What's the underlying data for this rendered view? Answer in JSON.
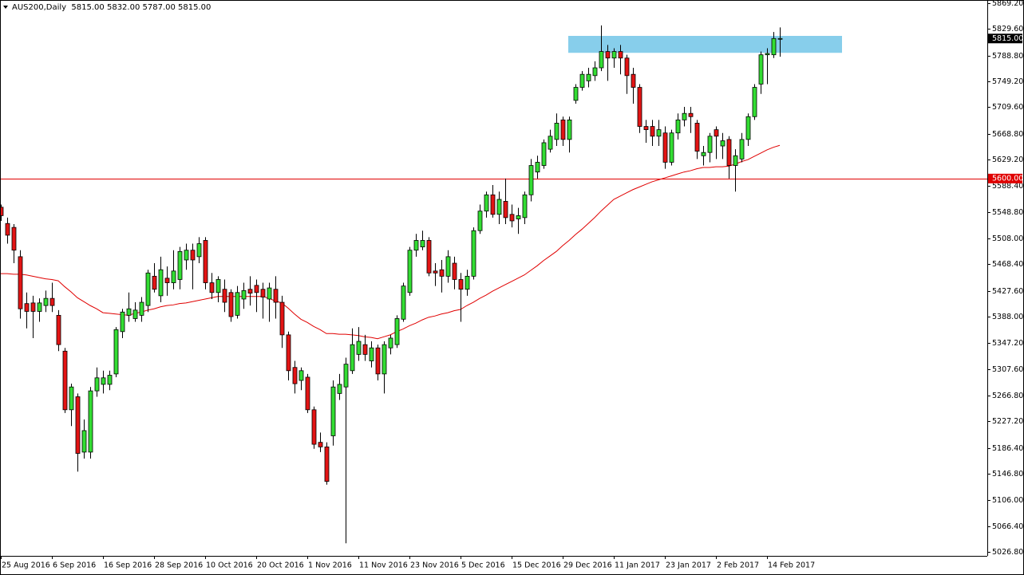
{
  "chart_data": {
    "type": "candlestick",
    "title": "AUS200,Daily  5815.00 5832.00 5787.00 5815.00",
    "categories": [
      "25 Aug 2016",
      null,
      null,
      null,
      null,
      null,
      null,
      null,
      "6 Sep 2016",
      null,
      null,
      null,
      null,
      null,
      null,
      null,
      "16 Sep 2016",
      null,
      null,
      null,
      null,
      null,
      null,
      null,
      "28 Sep 2016",
      null,
      null,
      null,
      null,
      null,
      null,
      null,
      "10 Oct 2016",
      null,
      null,
      null,
      null,
      null,
      null,
      null,
      "20 Oct 2016",
      null,
      null,
      null,
      null,
      null,
      null,
      null,
      "1 Nov 2016",
      null,
      null,
      null,
      null,
      null,
      null,
      null,
      "11 Nov 2016",
      null,
      null,
      null,
      null,
      null,
      null,
      null,
      "23 Nov 2016",
      null,
      null,
      null,
      null,
      null,
      null,
      null,
      "5 Dec 2016",
      null,
      null,
      null,
      null,
      null,
      null,
      null,
      "15 Dec 2016",
      null,
      null,
      null,
      null,
      null,
      null,
      null,
      "29 Dec 2016",
      null,
      null,
      null,
      null,
      null,
      null,
      null,
      "11 Jan 2017",
      null,
      null,
      null,
      null,
      null,
      null,
      null,
      "23 Jan 2017",
      null,
      null,
      null,
      null,
      null,
      null,
      null,
      "2 Feb 2017",
      null,
      null,
      null,
      null,
      null,
      null,
      null,
      "14 Feb 2017",
      null,
      null
    ],
    "open": [
      5556,
      5531,
      5525,
      5480,
      5408,
      5409,
      5396,
      5405,
      5416,
      5390,
      5335,
      5245,
      5265,
      5180,
      5180,
      5274,
      5284,
      5284,
      5300,
      5365,
      5390,
      5385,
      5390,
      5405,
      5450,
      5420,
      5447,
      5440,
      5445,
      5475,
      5490,
      5480,
      5505,
      5440,
      5425,
      5430,
      5425,
      5390,
      5415,
      5430,
      5436,
      5430,
      5415,
      5430,
      5410,
      5360,
      5310,
      5290,
      5295,
      5245,
      5195,
      5188,
      5205,
      5270,
      5280,
      5305,
      5330,
      5345,
      5320,
      5340,
      5300,
      5340,
      5345,
      5384,
      5425,
      5490,
      5495,
      5505,
      5458,
      5460,
      5450,
      5470,
      5445,
      5430,
      5450,
      5520,
      5550,
      5575,
      5545,
      5565,
      5545,
      5538,
      5540,
      5575,
      5610,
      5620,
      5645,
      5660,
      5690,
      5660,
      5720,
      5740,
      5750,
      5758,
      5770,
      5795,
      5785,
      5795,
      5785,
      5760,
      5740,
      5680,
      5680,
      5665,
      5670,
      5625,
      5670,
      5690,
      5700,
      5685,
      5635,
      5640,
      5675,
      5650,
      5660,
      5620,
      5630,
      5660,
      5695,
      5745,
      5790,
      5790,
      5815
    ],
    "high": [
      5560,
      5540,
      5530,
      5490,
      5425,
      5420,
      5416,
      5428,
      5440,
      5398,
      5340,
      5285,
      5270,
      5230,
      5280,
      5310,
      5305,
      5305,
      5372,
      5400,
      5425,
      5410,
      5418,
      5460,
      5470,
      5480,
      5465,
      5490,
      5495,
      5500,
      5500,
      5510,
      5510,
      5455,
      5450,
      5445,
      5430,
      5435,
      5440,
      5450,
      5445,
      5440,
      5440,
      5450,
      5420,
      5365,
      5320,
      5310,
      5300,
      5250,
      5210,
      5195,
      5290,
      5300,
      5325,
      5370,
      5372,
      5360,
      5350,
      5345,
      5350,
      5360,
      5390,
      5440,
      5495,
      5515,
      5520,
      5510,
      5470,
      5475,
      5490,
      5480,
      5455,
      5460,
      5525,
      5560,
      5580,
      5590,
      5580,
      5600,
      5560,
      5555,
      5580,
      5630,
      5635,
      5660,
      5675,
      5700,
      5695,
      5695,
      5745,
      5765,
      5770,
      5780,
      5835,
      5805,
      5800,
      5805,
      5790,
      5770,
      5745,
      5690,
      5690,
      5690,
      5680,
      5675,
      5700,
      5710,
      5710,
      5690,
      5650,
      5670,
      5680,
      5670,
      5665,
      5645,
      5670,
      5700,
      5745,
      5795,
      5800,
      5825,
      5832
    ],
    "low": [
      5535,
      5500,
      5470,
      5385,
      5370,
      5355,
      5380,
      5395,
      5395,
      5335,
      5240,
      5220,
      5150,
      5170,
      5170,
      5265,
      5270,
      5275,
      5295,
      5355,
      5380,
      5380,
      5380,
      5395,
      5425,
      5410,
      5420,
      5430,
      5430,
      5460,
      5430,
      5470,
      5430,
      5415,
      5410,
      5395,
      5380,
      5385,
      5400,
      5405,
      5395,
      5385,
      5380,
      5385,
      5340,
      5290,
      5270,
      5275,
      5240,
      5185,
      5180,
      5130,
      5190,
      5260,
      5040,
      5300,
      5320,
      5320,
      5310,
      5290,
      5270,
      5330,
      5340,
      5380,
      5420,
      5480,
      5490,
      5450,
      5435,
      5425,
      5440,
      5430,
      5380,
      5420,
      5445,
      5515,
      5540,
      5540,
      5530,
      5530,
      5525,
      5515,
      5530,
      5565,
      5600,
      5615,
      5640,
      5650,
      5650,
      5640,
      5715,
      5735,
      5740,
      5750,
      5765,
      5750,
      5770,
      5760,
      5730,
      5715,
      5670,
      5655,
      5650,
      5650,
      5615,
      5620,
      5660,
      5680,
      5670,
      5630,
      5620,
      5625,
      5630,
      5630,
      5600,
      5580,
      5625,
      5650,
      5690,
      5730,
      5745,
      5785,
      5787
    ],
    "close": [
      5543,
      5513,
      5490,
      5400,
      5396,
      5396,
      5409,
      5416,
      5405,
      5345,
      5245,
      5280,
      5178,
      5213,
      5274,
      5294,
      5294,
      5298,
      5368,
      5395,
      5400,
      5398,
      5410,
      5455,
      5430,
      5460,
      5440,
      5458,
      5488,
      5490,
      5475,
      5500,
      5440,
      5425,
      5445,
      5410,
      5388,
      5425,
      5428,
      5424,
      5425,
      5418,
      5432,
      5410,
      5360,
      5305,
      5285,
      5305,
      5245,
      5192,
      5188,
      5135,
      5280,
      5284,
      5315,
      5345,
      5350,
      5330,
      5340,
      5300,
      5345,
      5355,
      5385,
      5435,
      5490,
      5505,
      5505,
      5455,
      5455,
      5450,
      5480,
      5445,
      5430,
      5450,
      5520,
      5550,
      5575,
      5545,
      5568,
      5540,
      5535,
      5543,
      5575,
      5620,
      5625,
      5655,
      5665,
      5685,
      5660,
      5690,
      5740,
      5760,
      5760,
      5770,
      5795,
      5785,
      5795,
      5785,
      5758,
      5740,
      5680,
      5675,
      5665,
      5675,
      5625,
      5670,
      5690,
      5700,
      5695,
      5642,
      5640,
      5665,
      5665,
      5658,
      5620,
      5635,
      5660,
      5695,
      5740,
      5790,
      5792,
      5815,
      5815
    ],
    "up_color": "#33dd33",
    "down_color": "#e31414",
    "moving_average": {
      "color": "#e00000",
      "values": [
        5454,
        5454,
        5453,
        5453,
        5452,
        5450,
        5448,
        5446,
        5445,
        5443,
        5434,
        5426,
        5417,
        5411,
        5405,
        5400,
        5394,
        5393,
        5392,
        5391,
        5390,
        5393,
        5395,
        5398,
        5400,
        5403,
        5405,
        5406,
        5408,
        5409,
        5411,
        5413,
        5415,
        5417,
        5419,
        5419,
        5419,
        5419,
        5419,
        5419,
        5419,
        5419,
        5416,
        5412,
        5409,
        5401,
        5392,
        5384,
        5379,
        5373,
        5368,
        5362,
        5362,
        5361,
        5361,
        5360,
        5359,
        5357,
        5356,
        5354,
        5357,
        5360,
        5365,
        5369,
        5374,
        5378,
        5383,
        5387,
        5389,
        5392,
        5394,
        5397,
        5399,
        5405,
        5410,
        5416,
        5421,
        5427,
        5432,
        5437,
        5442,
        5447,
        5452,
        5459,
        5466,
        5474,
        5481,
        5488,
        5497,
        5505,
        5514,
        5522,
        5531,
        5540,
        5550,
        5559,
        5568,
        5573,
        5578,
        5583,
        5587,
        5591,
        5595,
        5598,
        5601,
        5604,
        5607,
        5610,
        5612,
        5615,
        5617,
        5617,
        5618,
        5618,
        5619,
        5622,
        5626,
        5629,
        5634,
        5639,
        5644,
        5648,
        5651
      ]
    },
    "zone": {
      "low": 5793,
      "high": 5819,
      "color": "#87ceeb"
    },
    "hline": {
      "value": 5600,
      "label": "5600.00",
      "color": "#e00000"
    },
    "last_price": {
      "value": 5815,
      "label": "5815.00"
    },
    "ylim": [
      5020.7,
      5874.1
    ],
    "yticks": [
      {
        "value": 5869.2,
        "label": "5869.20"
      },
      {
        "value": 5829.6,
        "label": "5829.60"
      },
      {
        "value": 5788.8,
        "label": "5788.80"
      },
      {
        "value": 5749.2,
        "label": "5749.20"
      },
      {
        "value": 5709.6,
        "label": "5709.60"
      },
      {
        "value": 5668.8,
        "label": "5668.80"
      },
      {
        "value": 5629.2,
        "label": "5629.20"
      },
      {
        "value": 5588.4,
        "label": "5588.40"
      },
      {
        "value": 5548.8,
        "label": "5548.80"
      },
      {
        "value": 5508,
        "label": "5508.00"
      },
      {
        "value": 5468.4,
        "label": "5468.40"
      },
      {
        "value": 5427.6,
        "label": "5427.60"
      },
      {
        "value": 5388,
        "label": "5388.00"
      },
      {
        "value": 5347.2,
        "label": "5347.20"
      },
      {
        "value": 5307.6,
        "label": "5307.60"
      },
      {
        "value": 5266.8,
        "label": "5266.80"
      },
      {
        "value": 5227.2,
        "label": "5227.20"
      },
      {
        "value": 5186.4,
        "label": "5186.40"
      },
      {
        "value": 5146.8,
        "label": "5146.80"
      },
      {
        "value": 5106,
        "label": "5106.00"
      },
      {
        "value": 5066.4,
        "label": "5066.40"
      },
      {
        "value": 5026.8,
        "label": "5026.80"
      }
    ],
    "grid": false
  }
}
